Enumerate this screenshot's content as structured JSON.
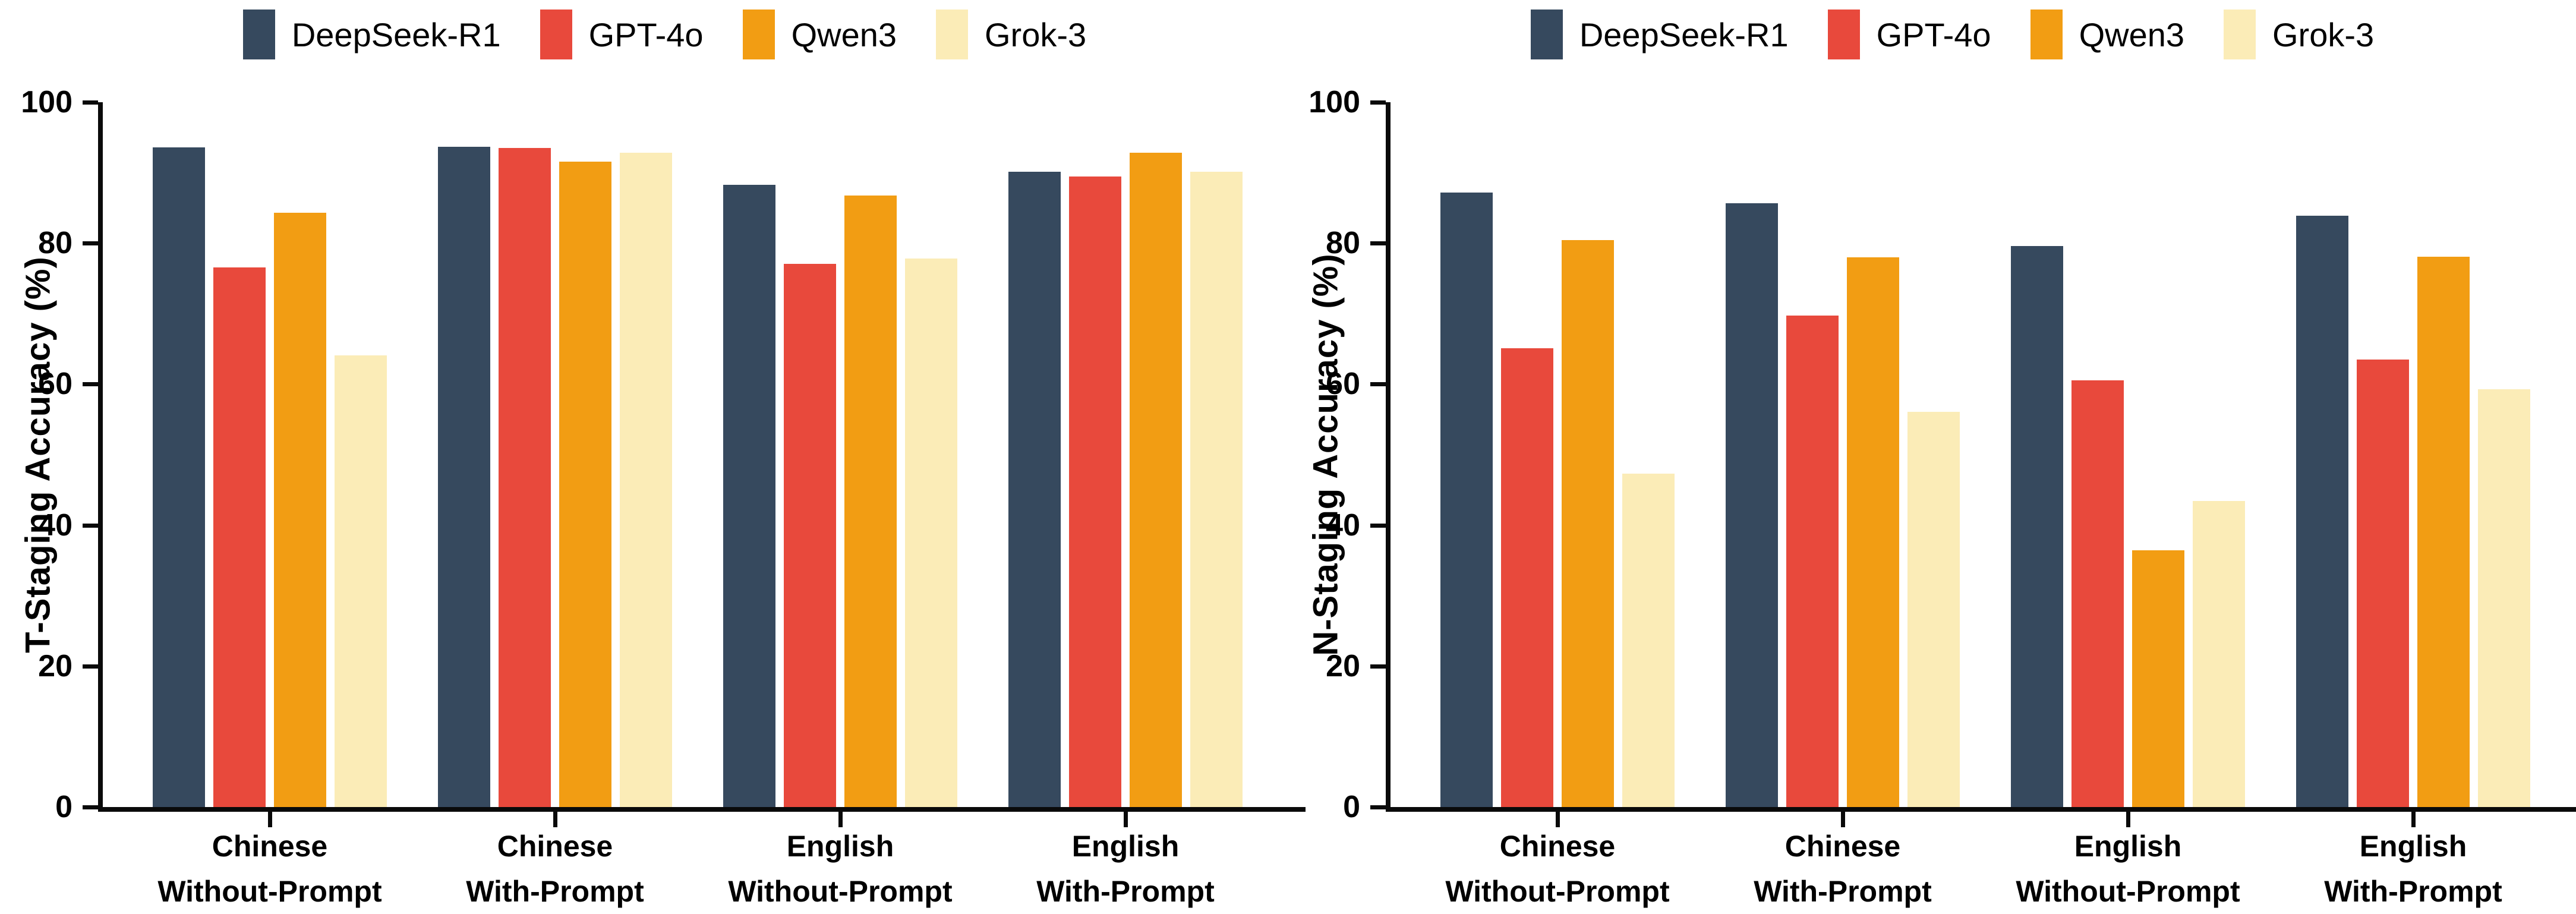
{
  "figure": {
    "background": "#ffffff",
    "axis_color": "#0a0a0a",
    "text_color": "#000000"
  },
  "legend": {
    "items": [
      {
        "label": "DeepSeek-R1",
        "color": "#36495E"
      },
      {
        "label": "GPT-4o",
        "color": "#E8493C"
      },
      {
        "label": "Qwen3",
        "color": "#F29D13"
      },
      {
        "label": "Grok-3",
        "color": "#FBECB7"
      }
    ]
  },
  "chart_data": [
    {
      "type": "bar",
      "title": "",
      "ylabel": "T-Staging Accuracy (%)",
      "xlabel": "",
      "ylim": [
        0,
        100
      ],
      "yticks": [
        0,
        20,
        40,
        60,
        80,
        100
      ],
      "grid": false,
      "legend_position": "top-center",
      "categories": [
        {
          "line1": "Chinese",
          "line2": "Without-Prompt"
        },
        {
          "line1": "Chinese",
          "line2": "With-Prompt"
        },
        {
          "line1": "English",
          "line2": "Without-Prompt"
        },
        {
          "line1": "English",
          "line2": "With-Prompt"
        }
      ],
      "series": [
        {
          "name": "DeepSeek-R1",
          "color": "#36495E",
          "values": [
            93.6,
            93.7,
            88.3,
            90.1
          ]
        },
        {
          "name": "GPT-4o",
          "color": "#E8493C",
          "values": [
            76.6,
            93.5,
            77.1,
            89.5
          ]
        },
        {
          "name": "Qwen3",
          "color": "#F29D13",
          "values": [
            84.3,
            91.6,
            86.8,
            92.8
          ]
        },
        {
          "name": "Grok-3",
          "color": "#FBECB7",
          "values": [
            64.1,
            92.8,
            77.8,
            90.1
          ]
        }
      ]
    },
    {
      "type": "bar",
      "title": "",
      "ylabel": "N-Staging Accuracy (%)",
      "xlabel": "",
      "ylim": [
        0,
        100
      ],
      "yticks": [
        0,
        20,
        40,
        60,
        80,
        100
      ],
      "grid": false,
      "legend_position": "top-center",
      "categories": [
        {
          "line1": "Chinese",
          "line2": "Without-Prompt"
        },
        {
          "line1": "Chinese",
          "line2": "With-Prompt"
        },
        {
          "line1": "English",
          "line2": "Without-Prompt"
        },
        {
          "line1": "English",
          "line2": "With-Prompt"
        }
      ],
      "series": [
        {
          "name": "DeepSeek-R1",
          "color": "#36495E",
          "values": [
            87.2,
            85.7,
            79.6,
            83.9
          ]
        },
        {
          "name": "GPT-4o",
          "color": "#E8493C",
          "values": [
            65.1,
            69.7,
            60.5,
            63.5
          ]
        },
        {
          "name": "Qwen3",
          "color": "#F29D13",
          "values": [
            80.4,
            78.0,
            36.4,
            78.1
          ]
        },
        {
          "name": "Grok-3",
          "color": "#FBECB7",
          "values": [
            47.3,
            56.1,
            43.4,
            59.3
          ]
        }
      ]
    }
  ]
}
